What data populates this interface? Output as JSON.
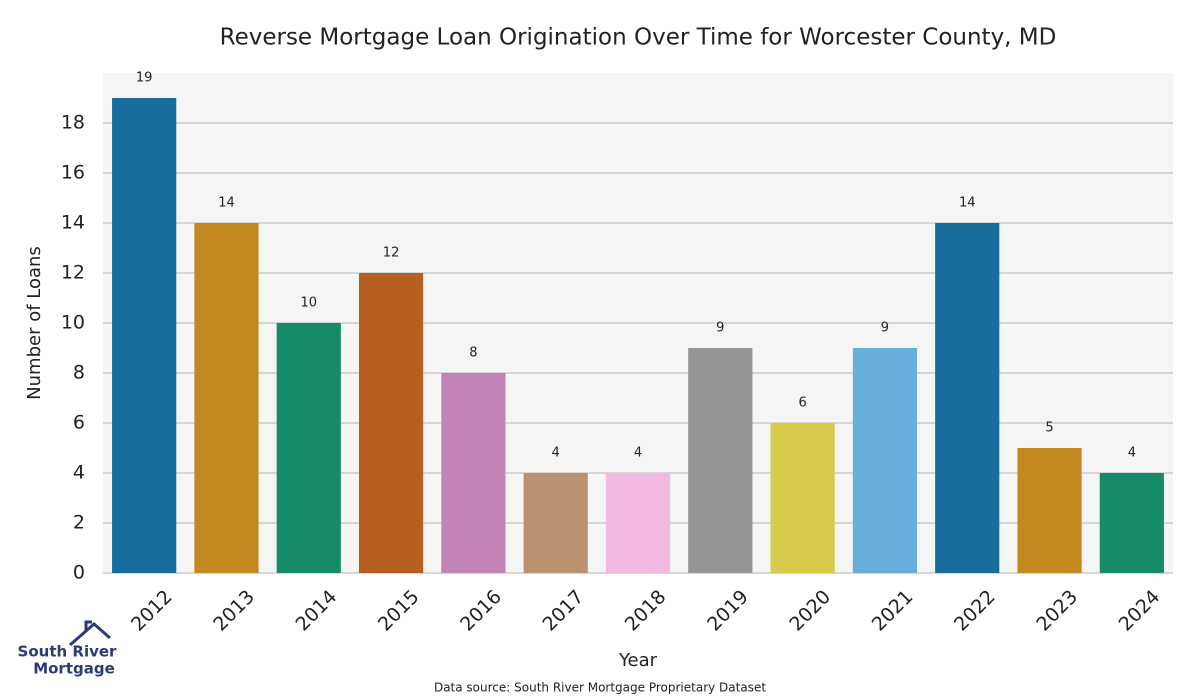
{
  "chart_data": {
    "type": "bar",
    "title": "Reverse Mortgage Loan Origination Over Time for Worcester County, MD",
    "x_label": "Year",
    "y_label": "Number of Loans",
    "categories": [
      "2012",
      "2013",
      "2014",
      "2015",
      "2016",
      "2017",
      "2018",
      "2019",
      "2020",
      "2021",
      "2022",
      "2023",
      "2024"
    ],
    "values": [
      19,
      14,
      10,
      12,
      8,
      4,
      4,
      9,
      6,
      9,
      14,
      5,
      4
    ],
    "colors": [
      "#176d9c",
      "#c38820",
      "#168b69",
      "#b75f1e",
      "#c283b5",
      "#bc9170",
      "#f1b8e0",
      "#959595",
      "#d6cb4a",
      "#67afd8",
      "#176d9c",
      "#c38820",
      "#168b69"
    ],
    "ylim": [
      0,
      20
    ],
    "yticks": [
      0,
      2,
      4,
      6,
      8,
      10,
      12,
      14,
      16,
      18
    ],
    "grid": true
  },
  "logo": [
    "South River",
    "Mortgage"
  ],
  "source": "Data source: South River Mortgage Proprietary Dataset"
}
